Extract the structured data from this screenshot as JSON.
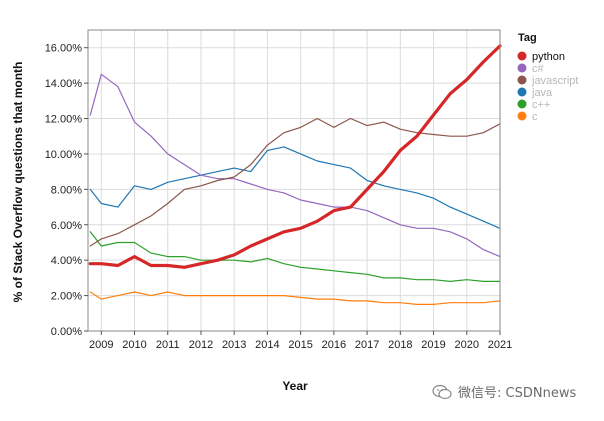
{
  "chart_data": {
    "type": "line",
    "xlabel": "Year",
    "ylabel": "% of Stack Overflow questions that month",
    "xlim": [
      2008.6,
      2021.0
    ],
    "ylim": [
      0,
      17
    ],
    "x_ticks": [
      2009,
      2010,
      2011,
      2012,
      2013,
      2014,
      2015,
      2016,
      2017,
      2018,
      2019,
      2020,
      2021
    ],
    "y_ticks": [
      0,
      2,
      4,
      6,
      8,
      10,
      12,
      14,
      16
    ],
    "y_tick_labels": [
      "0.00%",
      "2.00%",
      "4.00%",
      "6.00%",
      "8.00%",
      "10.00%",
      "12.00%",
      "14.00%",
      "16.00%"
    ],
    "grid": true,
    "legend_title": "Tag",
    "legend_position": "right",
    "x": [
      2008.67,
      2009.0,
      2009.5,
      2010.0,
      2010.5,
      2011.0,
      2011.5,
      2012.0,
      2012.5,
      2013.0,
      2013.5,
      2014.0,
      2014.5,
      2015.0,
      2015.5,
      2016.0,
      2016.5,
      2017.0,
      2017.5,
      2018.0,
      2018.5,
      2019.0,
      2019.5,
      2020.0,
      2020.5,
      2021.0
    ],
    "series": [
      {
        "name": "python",
        "color": "#d62728",
        "width": 3.2,
        "values": [
          3.8,
          3.8,
          3.7,
          4.2,
          3.7,
          3.7,
          3.6,
          3.8,
          4.0,
          4.3,
          4.8,
          5.2,
          5.6,
          5.8,
          6.2,
          6.8,
          7.0,
          8.0,
          9.0,
          10.2,
          11.0,
          12.2,
          13.4,
          14.2,
          15.2,
          16.1
        ]
      },
      {
        "name": "c#",
        "color": "#9467bd",
        "width": 1.2,
        "values": [
          12.2,
          14.5,
          13.8,
          11.8,
          11.0,
          10.0,
          9.4,
          8.8,
          8.6,
          8.6,
          8.3,
          8.0,
          7.8,
          7.4,
          7.2,
          7.0,
          7.0,
          6.8,
          6.4,
          6.0,
          5.8,
          5.8,
          5.6,
          5.2,
          4.6,
          4.2
        ]
      },
      {
        "name": "javascript",
        "color": "#8c564b",
        "width": 1.2,
        "values": [
          4.8,
          5.2,
          5.5,
          6.0,
          6.5,
          7.2,
          8.0,
          8.2,
          8.5,
          8.7,
          9.4,
          10.5,
          11.2,
          11.5,
          12.0,
          11.5,
          12.0,
          11.6,
          11.8,
          11.4,
          11.2,
          11.1,
          11.0,
          11.0,
          11.2,
          11.7
        ]
      },
      {
        "name": "java",
        "color": "#1f77b4",
        "width": 1.2,
        "values": [
          8.0,
          7.2,
          7.0,
          8.2,
          8.0,
          8.4,
          8.6,
          8.8,
          9.0,
          9.2,
          9.0,
          10.2,
          10.4,
          10.0,
          9.6,
          9.4,
          9.2,
          8.5,
          8.2,
          8.0,
          7.8,
          7.5,
          7.0,
          6.6,
          6.2,
          5.8
        ]
      },
      {
        "name": "c++",
        "color": "#2ca02c",
        "width": 1.2,
        "values": [
          5.6,
          4.8,
          5.0,
          5.0,
          4.4,
          4.2,
          4.2,
          4.0,
          4.0,
          4.0,
          3.9,
          4.1,
          3.8,
          3.6,
          3.5,
          3.4,
          3.3,
          3.2,
          3.0,
          3.0,
          2.9,
          2.9,
          2.8,
          2.9,
          2.8,
          2.8
        ]
      },
      {
        "name": "c",
        "color": "#ff7f0e",
        "width": 1.2,
        "values": [
          2.2,
          1.8,
          2.0,
          2.2,
          2.0,
          2.2,
          2.0,
          2.0,
          2.0,
          2.0,
          2.0,
          2.0,
          2.0,
          1.9,
          1.8,
          1.8,
          1.7,
          1.7,
          1.6,
          1.6,
          1.5,
          1.5,
          1.6,
          1.6,
          1.6,
          1.7
        ]
      }
    ]
  },
  "legend": {
    "items": [
      {
        "label": "python",
        "color": "#d62728",
        "label_color": "#111111"
      },
      {
        "label": "c#",
        "color": "#9467bd",
        "label_color": "#b8b8b8"
      },
      {
        "label": "javascript",
        "color": "#8c564b",
        "label_color": "#b8b8b8"
      },
      {
        "label": "java",
        "color": "#1f77b4",
        "label_color": "#b8b8b8"
      },
      {
        "label": "c++",
        "color": "#2ca02c",
        "label_color": "#b8b8b8"
      },
      {
        "label": "c",
        "color": "#ff7f0e",
        "label_color": "#b8b8b8"
      }
    ]
  },
  "watermark": {
    "text": "微信号: CSDNnews",
    "icon": "wechat-icon"
  }
}
